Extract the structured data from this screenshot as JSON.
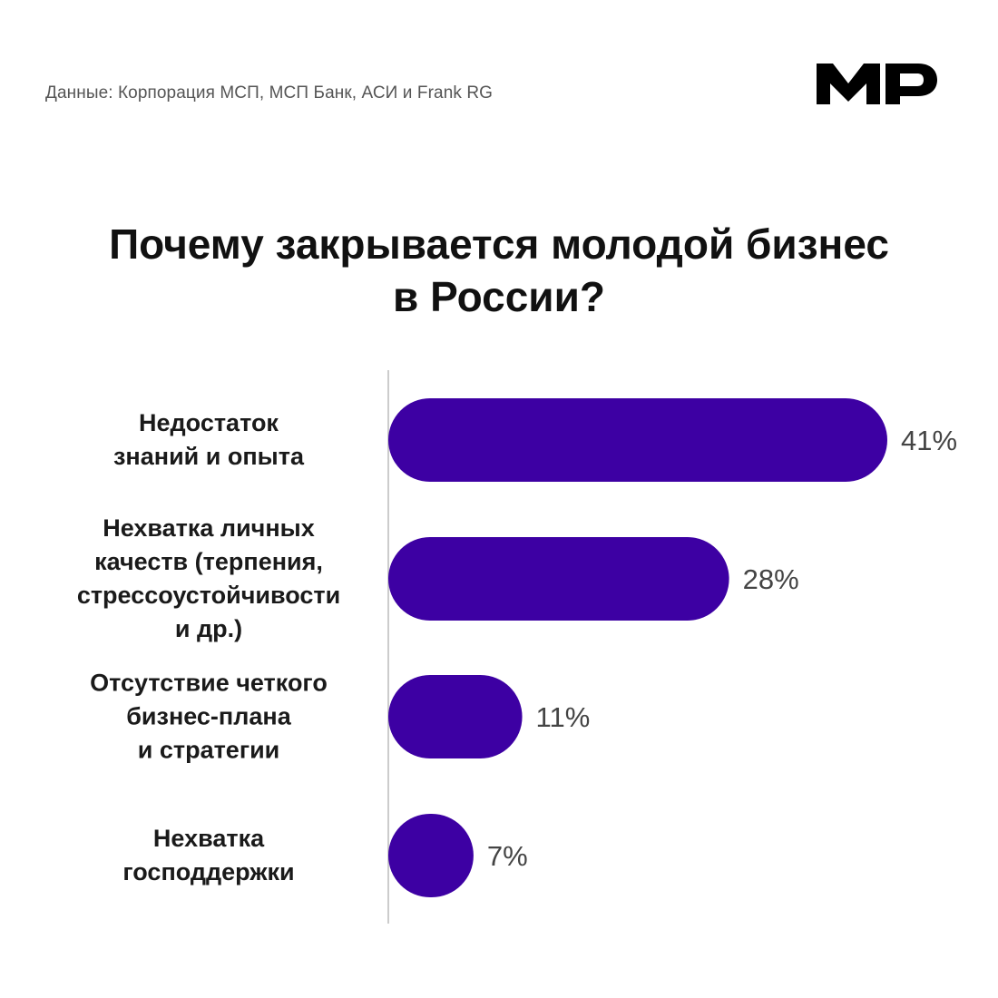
{
  "header": {
    "source": "Данные: Корпорация МСП, МСП Банк, АСИ и Frank RG",
    "logo_text": "MP"
  },
  "chart_data": {
    "type": "bar",
    "orientation": "horizontal",
    "title_lines": [
      "Почему закрывается молодой бизнес",
      "в России?"
    ],
    "categories": [
      "Недостаток\nзнаний и опыта",
      "Нехватка личных\nкачеств (терпения,\nстрессоустойчивости\nи др.)",
      "Отсутствие четкого\nбизнес-плана\nи стратегии",
      "Нехватка\nгосподдержки"
    ],
    "values": [
      41,
      28,
      11,
      7
    ],
    "value_labels": [
      "41%",
      "28%",
      "11%",
      "7%"
    ],
    "unit": "%",
    "bar_color": "#3d00a3",
    "value_label_color": "#444444",
    "axis_color": "#bbbbbb",
    "grid": false,
    "legend": "none"
  }
}
